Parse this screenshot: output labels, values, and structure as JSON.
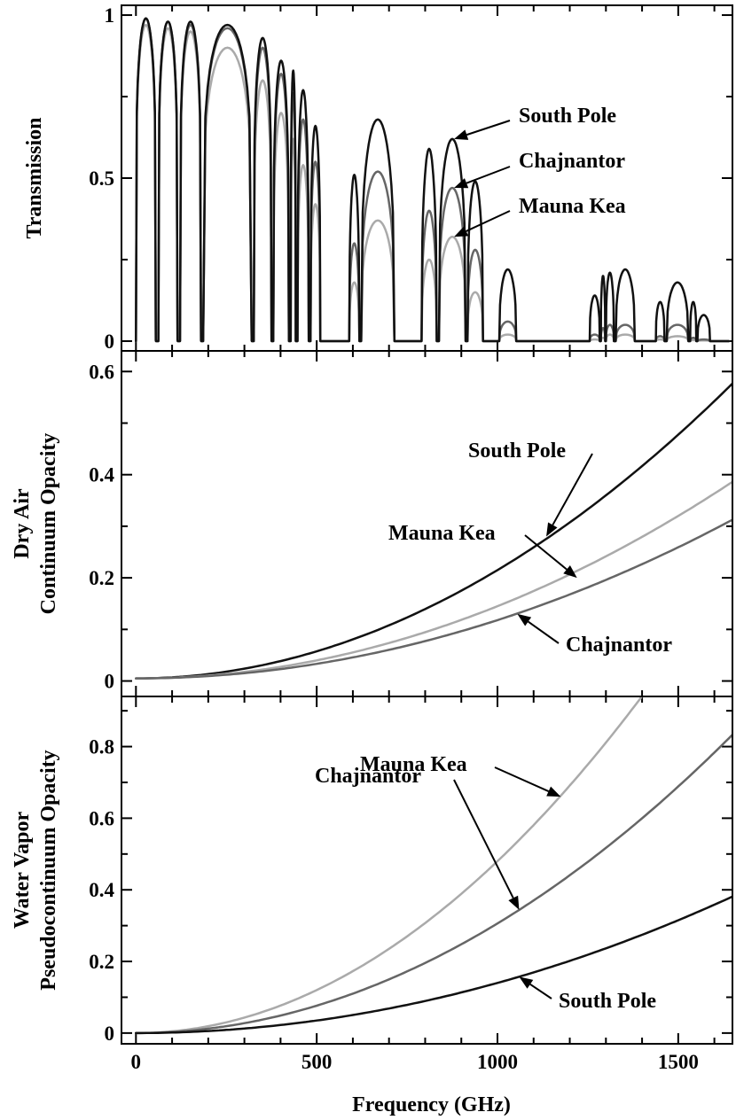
{
  "colors": {
    "South Pole": "#111111",
    "Chajnantor": "#666666",
    "Mauna Kea": "#aaaaaa"
  },
  "chart_data": [
    {
      "type": "line",
      "panel": "top",
      "title": "",
      "xlabel": "",
      "ylabel": "Transmission",
      "xlim": [
        -40,
        1650
      ],
      "ylim": [
        -0.03,
        1.03
      ],
      "yticks": [
        0,
        0.5,
        1
      ],
      "ytick_labels": [
        "0",
        "0.5",
        "1"
      ],
      "grid": false,
      "windows": [
        {
          "lo": 0,
          "hi": 55,
          "n": 0.5
        },
        {
          "lo": 62,
          "hi": 115,
          "n": 0.5
        },
        {
          "lo": 122,
          "hi": 180,
          "n": 0.5
        },
        {
          "lo": 186,
          "hi": 320,
          "n": 0.5
        },
        {
          "lo": 326,
          "hi": 375,
          "n": 0.6
        },
        {
          "lo": 380,
          "hi": 423,
          "n": 0.7
        },
        {
          "lo": 428,
          "hi": 442,
          "n": 0.8
        },
        {
          "lo": 447,
          "hi": 478,
          "n": 0.8
        },
        {
          "lo": 483,
          "hi": 510,
          "n": 0.8
        },
        {
          "lo": 590,
          "hi": 618,
          "n": 1.0
        },
        {
          "lo": 623,
          "hi": 715,
          "n": 0.8
        },
        {
          "lo": 790,
          "hi": 832,
          "n": 1.0
        },
        {
          "lo": 838,
          "hi": 912,
          "n": 0.8
        },
        {
          "lo": 917,
          "hi": 960,
          "n": 0.9
        },
        {
          "lo": 1005,
          "hi": 1052,
          "n": 1.0
        },
        {
          "lo": 1255,
          "hi": 1283,
          "n": 1.0
        },
        {
          "lo": 1286,
          "hi": 1298,
          "n": 1.0
        },
        {
          "lo": 1300,
          "hi": 1322,
          "n": 1.0
        },
        {
          "lo": 1327,
          "hi": 1380,
          "n": 1.0
        },
        {
          "lo": 1438,
          "hi": 1462,
          "n": 1.0
        },
        {
          "lo": 1468,
          "hi": 1528,
          "n": 1.0
        },
        {
          "lo": 1533,
          "hi": 1550,
          "n": 1.0
        },
        {
          "lo": 1553,
          "hi": 1588,
          "n": 1.0
        }
      ],
      "series": [
        {
          "name": "South Pole",
          "peaks": [
            0.99,
            0.98,
            0.98,
            0.97,
            0.93,
            0.86,
            0.83,
            0.77,
            0.66,
            0.51,
            0.68,
            0.59,
            0.62,
            0.49,
            0.22,
            0.14,
            0.2,
            0.21,
            0.22,
            0.12,
            0.18,
            0.12,
            0.08
          ]
        },
        {
          "name": "Chajnantor",
          "peaks": [
            0.99,
            0.98,
            0.97,
            0.96,
            0.9,
            0.82,
            0.76,
            0.68,
            0.55,
            0.3,
            0.52,
            0.4,
            0.47,
            0.28,
            0.06,
            0.02,
            0.04,
            0.05,
            0.05,
            0.015,
            0.05,
            0.01,
            0.005
          ]
        },
        {
          "name": "Mauna Kea",
          "peaks": [
            0.97,
            0.96,
            0.95,
            0.9,
            0.8,
            0.7,
            0.62,
            0.54,
            0.42,
            0.18,
            0.37,
            0.25,
            0.32,
            0.15,
            0.02,
            0.005,
            0.01,
            0.02,
            0.02,
            0.005,
            0.015,
            0.003,
            0.002
          ]
        }
      ],
      "annotations": [
        {
          "text": "South Pole",
          "series": "South Pole",
          "x": 880,
          "y": 0.62
        },
        {
          "text": "Chajnantor",
          "series": "Chajnantor",
          "x": 880,
          "y": 0.47
        },
        {
          "text": "Mauna Kea",
          "series": "Mauna Kea",
          "x": 880,
          "y": 0.32
        }
      ]
    },
    {
      "type": "line",
      "panel": "middle",
      "title": "",
      "xlabel": "",
      "ylabel": [
        "Dry Air",
        "Continuum Opacity"
      ],
      "xlim": [
        -40,
        1650
      ],
      "ylim": [
        -0.03,
        0.64
      ],
      "yticks": [
        0,
        0.2,
        0.4,
        0.6
      ],
      "ytick_labels": [
        "0",
        "0.2",
        "0.4",
        "0.6"
      ],
      "grid": false,
      "model": "y = y0 + a*(x/1000)^2",
      "series": [
        {
          "name": "South Pole",
          "y0": 0.005,
          "a": 0.21
        },
        {
          "name": "Mauna Kea",
          "y0": 0.005,
          "a": 0.14
        },
        {
          "name": "Chajnantor",
          "y0": 0.005,
          "a": 0.113
        }
      ],
      "annotations": [
        {
          "text": "South Pole",
          "series": "South Pole",
          "x": 1135,
          "y": 0.28
        },
        {
          "text": "Mauna Kea",
          "series": "Mauna Kea",
          "x": 1220,
          "y": 0.2
        },
        {
          "text": "Chajnantor",
          "series": "Chajnantor",
          "x": 1055,
          "y": 0.13
        }
      ]
    },
    {
      "type": "line",
      "panel": "bottom",
      "title": "",
      "xlabel": "Frequency (GHz)",
      "ylabel": [
        "Water Vapor",
        "Pseudocontinuum Opacity"
      ],
      "xlim": [
        -40,
        1650
      ],
      "ylim": [
        -0.03,
        0.94
      ],
      "xticks": [
        0,
        500,
        1000,
        1500
      ],
      "xtick_labels": [
        "0",
        "500",
        "1000",
        "1500"
      ],
      "yticks": [
        0,
        0.2,
        0.4,
        0.6,
        0.8
      ],
      "ytick_labels": [
        "0",
        "0.2",
        "0.4",
        "0.6",
        "0.8"
      ],
      "grid": false,
      "model": "y = a*(x/1000)^2",
      "series": [
        {
          "name": "Mauna Kea",
          "a": 0.48
        },
        {
          "name": "Chajnantor",
          "a": 0.306
        },
        {
          "name": "South Pole",
          "a": 0.14
        }
      ],
      "annotations": [
        {
          "text": "Mauna Kea",
          "series": "Mauna Kea",
          "x": 1175,
          "y": 0.66
        },
        {
          "text": "Chajnantor",
          "series": "Chajnantor",
          "x": 1060,
          "y": 0.344
        },
        {
          "text": "South Pole",
          "series": "South Pole",
          "x": 1060,
          "y": 0.157
        }
      ]
    }
  ]
}
